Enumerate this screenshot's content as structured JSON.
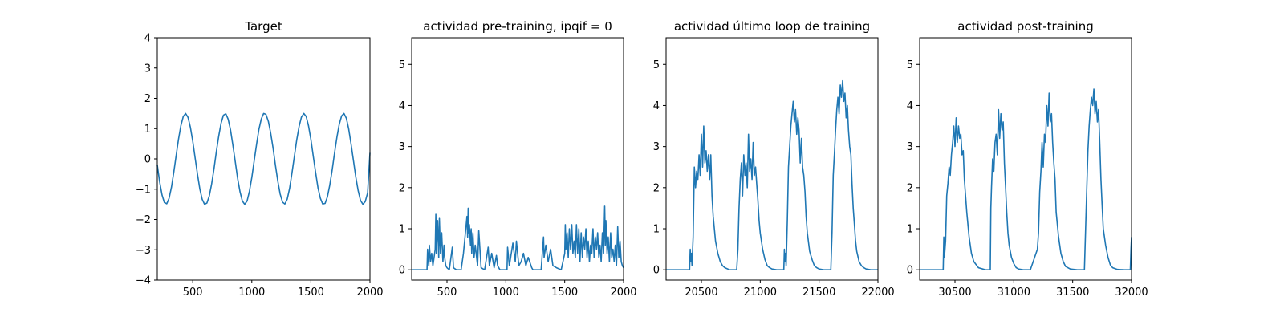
{
  "chart_data": [
    {
      "type": "line",
      "title": "Target",
      "xlim": [
        200,
        2000
      ],
      "ylim": [
        -4,
        4
      ],
      "xticks": [
        "500",
        "1000",
        "1500",
        "2000"
      ],
      "xtick_values": [
        500,
        1000,
        1500,
        2000
      ],
      "yticks": [
        "−4",
        "−3",
        "−2",
        "−1",
        "0",
        "1",
        "2",
        "3",
        "4"
      ],
      "ytick_values": [
        -4,
        -3,
        -2,
        -1,
        0,
        1,
        2,
        3,
        4
      ],
      "series": [
        {
          "x": [
            200,
            220,
            240,
            260,
            280,
            300,
            320,
            340,
            360,
            380,
            400,
            420,
            440,
            460,
            480,
            500,
            520,
            540,
            560,
            580,
            600,
            620,
            640,
            660,
            680,
            700,
            720,
            740,
            760,
            780,
            800,
            820,
            840,
            860,
            880,
            900,
            920,
            940,
            960,
            980,
            1000,
            1020,
            1040,
            1060,
            1080,
            1100,
            1120,
            1140,
            1160,
            1180,
            1200,
            1220,
            1240,
            1260,
            1280,
            1300,
            1320,
            1340,
            1360,
            1380,
            1400,
            1420,
            1440,
            1460,
            1480,
            1500,
            1520,
            1540,
            1560,
            1580,
            1600,
            1620,
            1640,
            1660,
            1680,
            1700,
            1720,
            1740,
            1760,
            1780,
            1800,
            1820,
            1840,
            1860,
            1880,
            1900,
            1920,
            1940,
            1960,
            1980,
            2000
          ],
          "y": [
            -0.2,
            -0.75,
            -1.19,
            -1.44,
            -1.48,
            -1.3,
            -0.93,
            -0.43,
            0.13,
            0.66,
            1.1,
            1.4,
            1.5,
            1.37,
            1.05,
            0.58,
            0.04,
            -0.51,
            -0.99,
            -1.33,
            -1.5,
            -1.46,
            -1.22,
            -0.83,
            -0.32,
            0.24,
            0.76,
            1.18,
            1.44,
            1.49,
            1.31,
            0.95,
            0.45,
            -0.1,
            -0.64,
            -1.09,
            -1.39,
            -1.5,
            -1.39,
            -1.07,
            -0.61,
            -0.07,
            0.48,
            0.97,
            1.32,
            1.5,
            1.47,
            1.24,
            0.85,
            0.35,
            -0.21,
            -0.74,
            -1.16,
            -1.43,
            -1.49,
            -1.33,
            -0.97,
            -0.47,
            0.08,
            0.62,
            1.07,
            1.38,
            1.5,
            1.4,
            1.1,
            0.64,
            0.1,
            -0.45,
            -0.95,
            -1.3,
            -1.49,
            -1.47,
            -1.25,
            -0.87,
            -0.37,
            0.18,
            0.71,
            1.14,
            1.42,
            1.5,
            1.34,
            0.99,
            0.5,
            -0.05,
            -0.59,
            -1.05,
            -1.37,
            -1.5,
            -1.41,
            -1.12,
            0.2
          ]
        }
      ]
    },
    {
      "type": "line",
      "title": "actividad pre-training, ipqif = 0",
      "xlim": [
        200,
        2000
      ],
      "ylim": [
        -0.25,
        5.65
      ],
      "xticks": [
        "500",
        "1000",
        "1500",
        "2000"
      ],
      "xtick_values": [
        500,
        1000,
        1500,
        2000
      ],
      "yticks": [
        "0",
        "1",
        "2",
        "3",
        "4",
        "5"
      ],
      "ytick_values": [
        0,
        1,
        2,
        3,
        4,
        5
      ],
      "series": [
        {
          "x": [
            200,
            330,
            335,
            345,
            350,
            360,
            370,
            380,
            390,
            400,
            405,
            410,
            420,
            430,
            435,
            445,
            455,
            465,
            475,
            480,
            490,
            500,
            520,
            545,
            555,
            580,
            620,
            640,
            670,
            675,
            680,
            685,
            690,
            700,
            705,
            710,
            720,
            730,
            740,
            760,
            770,
            790,
            820,
            850,
            860,
            880,
            900,
            920,
            930,
            950,
            980,
            1010,
            1015,
            1030,
            1060,
            1080,
            1090,
            1110,
            1130,
            1150,
            1170,
            1190,
            1220,
            1230,
            1260,
            1300,
            1320,
            1325,
            1340,
            1360,
            1380,
            1400,
            1430,
            1470,
            1500,
            1505,
            1510,
            1520,
            1530,
            1540,
            1550,
            1560,
            1570,
            1580,
            1590,
            1600,
            1610,
            1620,
            1630,
            1640,
            1650,
            1660,
            1670,
            1680,
            1690,
            1700,
            1710,
            1720,
            1730,
            1740,
            1750,
            1760,
            1770,
            1780,
            1790,
            1800,
            1810,
            1820,
            1830,
            1840,
            1845,
            1850,
            1860,
            1870,
            1880,
            1890,
            1900,
            1910,
            1920,
            1930,
            1940,
            1950,
            1960,
            1970,
            1980,
            1990,
            2000
          ],
          "y": [
            0,
            0,
            0.5,
            0.1,
            0.6,
            0.2,
            0.4,
            0.1,
            0.3,
            0.5,
            1.35,
            0.4,
            1.2,
            0.3,
            1.25,
            0.4,
            0.9,
            0.2,
            0.6,
            0.3,
            0.1,
            0.05,
            0,
            0.55,
            0.05,
            0,
            0,
            0.4,
            1.3,
            0.8,
            1.5,
            0.9,
            1.1,
            0.6,
            1.0,
            0.4,
            0.9,
            0.3,
            0.6,
            0.1,
            0.95,
            0.05,
            0,
            0.55,
            0.1,
            0.4,
            0.05,
            0.35,
            0.1,
            0,
            0,
            0,
            0.55,
            0.1,
            0.65,
            0.2,
            0.7,
            0.1,
            0.2,
            0.4,
            0.1,
            0.3,
            0.05,
            0,
            0,
            0,
            0.8,
            0.3,
            0.6,
            0.2,
            0.5,
            0.1,
            0.05,
            0,
            0.4,
            1.1,
            0.5,
            0.9,
            0.3,
            1.0,
            0.5,
            1.1,
            0.4,
            0.7,
            0.3,
            1.1,
            0.4,
            1.0,
            0.2,
            0.9,
            0.3,
            0.8,
            0.5,
            1.0,
            0.3,
            0.7,
            0.2,
            0.6,
            0.4,
            1.0,
            0.3,
            0.8,
            0.5,
            0.9,
            0.3,
            0.6,
            0.2,
            0.9,
            0.4,
            1.55,
            0.6,
            1.2,
            0.4,
            0.8,
            0.2,
            0.9,
            0.3,
            0.5,
            0.2,
            0.6,
            0.1,
            1.05,
            0.3,
            0.7,
            0.2,
            0.1,
            0.05
          ]
        }
      ]
    },
    {
      "type": "line",
      "title": "actividad último loop de training",
      "xlim": [
        20200,
        22000
      ],
      "ylim": [
        -0.25,
        5.65
      ],
      "xticks": [
        "20500",
        "21000",
        "21500",
        "22000"
      ],
      "xtick_values": [
        20500,
        21000,
        21500,
        22000
      ],
      "yticks": [
        "0",
        "1",
        "2",
        "3",
        "4",
        "5"
      ],
      "ytick_values": [
        0,
        1,
        2,
        3,
        4,
        5
      ],
      "series": [
        {
          "x": [
            20200,
            20400,
            20405,
            20410,
            20415,
            20420,
            20430,
            20440,
            20450,
            20460,
            20470,
            20480,
            20490,
            20500,
            20510,
            20520,
            20530,
            20540,
            20550,
            20560,
            20570,
            20580,
            20590,
            20600,
            20620,
            20640,
            20660,
            20680,
            20700,
            20740,
            20800,
            20810,
            20820,
            20830,
            20840,
            20850,
            20860,
            20870,
            20880,
            20890,
            20900,
            20910,
            20920,
            20930,
            20940,
            20950,
            20960,
            20970,
            20980,
            20990,
            21000,
            21020,
            21040,
            21060,
            21080,
            21100,
            21140,
            21200,
            21205,
            21210,
            21215,
            21220,
            21230,
            21240,
            21250,
            21260,
            21270,
            21280,
            21290,
            21300,
            21310,
            21320,
            21330,
            21340,
            21350,
            21360,
            21370,
            21380,
            21390,
            21400,
            21420,
            21440,
            21460,
            21480,
            21500,
            21540,
            21600,
            21610,
            21620,
            21630,
            21640,
            21650,
            21660,
            21670,
            21680,
            21690,
            21700,
            21710,
            21720,
            21730,
            21740,
            21750,
            21760,
            21770,
            21780,
            21790,
            21800,
            21810,
            21820,
            21840,
            21860,
            21880,
            21900,
            21940,
            22000
          ],
          "y": [
            0,
            0,
            0.5,
            0.2,
            0.4,
            0.1,
            0.8,
            2.5,
            2.0,
            2.4,
            2.2,
            2.8,
            2.3,
            3.3,
            2.5,
            3.5,
            2.6,
            2.9,
            2.4,
            2.8,
            2.2,
            2.8,
            1.8,
            1.3,
            0.7,
            0.4,
            0.2,
            0.1,
            0.05,
            0,
            0,
            0.5,
            1.5,
            2.2,
            2.6,
            1.8,
            2.8,
            2.3,
            2.6,
            2.0,
            3.3,
            2.4,
            2.7,
            2.2,
            3.1,
            2.3,
            2.5,
            2.1,
            1.7,
            1.2,
            0.9,
            0.5,
            0.25,
            0.1,
            0.05,
            0.02,
            0,
            0,
            0.5,
            0.2,
            0.4,
            0.1,
            1.2,
            2.5,
            3.0,
            3.5,
            3.8,
            4.1,
            3.6,
            3.9,
            3.3,
            3.7,
            3.4,
            2.6,
            3.2,
            2.5,
            2.3,
            1.9,
            1.3,
            0.9,
            0.45,
            0.25,
            0.1,
            0.05,
            0.02,
            0,
            0,
            0.9,
            2.3,
            2.8,
            3.4,
            3.9,
            4.2,
            3.8,
            4.5,
            4.2,
            4.6,
            4.1,
            4.3,
            3.7,
            4.0,
            3.4,
            3.0,
            2.8,
            2.1,
            1.5,
            1.1,
            0.7,
            0.45,
            0.2,
            0.1,
            0.05,
            0.02,
            0,
            0
          ]
        }
      ]
    },
    {
      "type": "line",
      "title": "actividad post-training",
      "xlim": [
        30200,
        32000
      ],
      "ylim": [
        -0.25,
        5.65
      ],
      "xticks": [
        "30500",
        "31000",
        "31500",
        "32000"
      ],
      "xtick_values": [
        30500,
        31000,
        31500,
        32000
      ],
      "yticks": [
        "0",
        "1",
        "2",
        "3",
        "4",
        "5"
      ],
      "ytick_values": [
        0,
        1,
        2,
        3,
        4,
        5
      ],
      "series": [
        {
          "x": [
            30200,
            30400,
            30405,
            30410,
            30420,
            30430,
            30440,
            30450,
            30460,
            30470,
            30480,
            30490,
            30500,
            30510,
            30520,
            30530,
            30540,
            30550,
            30560,
            30570,
            30580,
            30600,
            30620,
            30640,
            30660,
            30700,
            30760,
            30800,
            30805,
            30810,
            30820,
            30830,
            30840,
            30850,
            30860,
            30870,
            30880,
            30890,
            30900,
            30910,
            30920,
            30930,
            30940,
            30950,
            30960,
            30980,
            31000,
            31020,
            31040,
            31080,
            31140,
            31200,
            31210,
            31220,
            31230,
            31240,
            31250,
            31260,
            31270,
            31280,
            31290,
            31300,
            31310,
            31320,
            31330,
            31340,
            31350,
            31360,
            31380,
            31400,
            31420,
            31440,
            31480,
            31540,
            31600,
            31610,
            31620,
            31630,
            31640,
            31650,
            31660,
            31670,
            31680,
            31690,
            31700,
            31710,
            31720,
            31730,
            31740,
            31750,
            31760,
            31780,
            31800,
            31820,
            31840,
            31880,
            31940,
            31990,
            31995,
            32000
          ],
          "y": [
            0,
            0,
            0.8,
            0.3,
            0.7,
            1.8,
            2.1,
            2.5,
            2.3,
            2.8,
            3.1,
            3.5,
            3.0,
            3.7,
            3.1,
            3.5,
            3.2,
            3.3,
            2.8,
            2.9,
            2.2,
            1.4,
            0.8,
            0.4,
            0.2,
            0.05,
            0,
            0,
            1.5,
            2.0,
            2.7,
            2.4,
            3.1,
            3.3,
            2.8,
            3.9,
            3.2,
            3.8,
            3.4,
            3.6,
            2.6,
            2.0,
            1.4,
            0.9,
            0.6,
            0.3,
            0.15,
            0.05,
            0.02,
            0,
            0,
            0.5,
            0.9,
            1.9,
            2.4,
            3.1,
            2.5,
            3.3,
            3.1,
            4.0,
            3.5,
            4.3,
            3.6,
            3.8,
            3.1,
            2.6,
            2.2,
            1.4,
            0.8,
            0.4,
            0.2,
            0.08,
            0.02,
            0,
            0,
            1.0,
            2.0,
            2.9,
            3.5,
            3.9,
            4.2,
            4.0,
            4.4,
            3.8,
            4.1,
            3.6,
            3.9,
            3.1,
            2.2,
            1.6,
            1.0,
            0.6,
            0.3,
            0.12,
            0.05,
            0.01,
            0,
            0,
            0.5,
            0.8
          ]
        }
      ]
    }
  ],
  "style": {
    "line_color": "#1f77b4"
  }
}
